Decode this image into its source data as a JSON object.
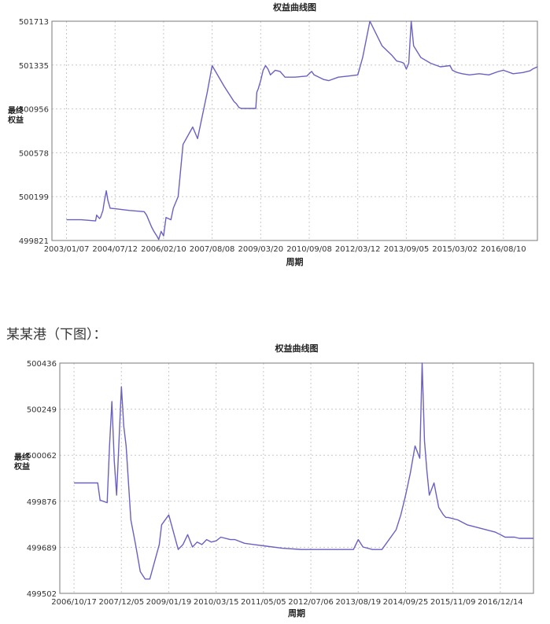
{
  "caption": "某某港（下图）：",
  "colors": {
    "line": "#6a60c4",
    "plot_bg": "#ffffff",
    "grid": "#c8c8c8",
    "frame": "#7a7a7a"
  },
  "chart_data": [
    {
      "type": "line",
      "title": "权益曲线图",
      "xlabel": "周期",
      "ylabel": "最终权益",
      "ylim": [
        499821,
        501713
      ],
      "yticks": [
        "501713",
        "501335",
        "500956",
        "500578",
        "500199",
        "499821"
      ],
      "xticks": [
        "2003/01/07",
        "2004/07/12",
        "2006/02/10",
        "2007/08/08",
        "2009/03/20",
        "2010/09/08",
        "2012/03/12",
        "2013/09/05",
        "2015/03/02",
        "2016/08/10"
      ],
      "grid": true,
      "series": [
        {
          "x": [
            0,
            0.3,
            0.6,
            0.62,
            0.68,
            0.7,
            0.75,
            0.78,
            0.82,
            0.85,
            0.9,
            1.0,
            1.3,
            1.6,
            1.65,
            1.75,
            1.8,
            1.86,
            1.9,
            1.95,
            2.0,
            2.05,
            2.15,
            2.2,
            2.3,
            2.4,
            2.6,
            2.7,
            2.9,
            3.0,
            3.25,
            3.45,
            3.5,
            3.55,
            3.6,
            3.7,
            3.8,
            3.85,
            3.9,
            3.92,
            3.95,
            4.0,
            4.05,
            4.1,
            4.15,
            4.2,
            4.3,
            4.4,
            4.5,
            4.7,
            4.95,
            5.0,
            5.05,
            5.1,
            5.2,
            5.3,
            5.4,
            5.6,
            5.8,
            6.0,
            6.1,
            6.25,
            6.5,
            6.7,
            6.8,
            6.9,
            6.95,
            7.0,
            7.05,
            7.1,
            7.15,
            7.3,
            7.5,
            7.7,
            7.9,
            7.95,
            8.0,
            8.05,
            8.15,
            8.3,
            8.5,
            8.7,
            8.9,
            9.0,
            9.2,
            9.4,
            9.55,
            9.6,
            9.7
          ],
          "values": [
            500000,
            500000,
            499990,
            500040,
            500010,
            500020,
            500080,
            500160,
            500250,
            500170,
            500100,
            500095,
            500080,
            500070,
            500040,
            499940,
            499900,
            499860,
            499830,
            499900,
            499860,
            500020,
            500000,
            500100,
            500200,
            500650,
            500800,
            500700,
            501100,
            501330,
            501150,
            501020,
            501000,
            500970,
            500960,
            500960,
            500960,
            500960,
            500960,
            501100,
            501130,
            501200,
            501290,
            501330,
            501300,
            501250,
            501290,
            501280,
            501230,
            501230,
            501240,
            501260,
            501280,
            501250,
            501230,
            501210,
            501200,
            501230,
            501240,
            501250,
            501400,
            501713,
            501500,
            501420,
            501370,
            501360,
            501350,
            501300,
            501350,
            501713,
            501500,
            501400,
            501350,
            501320,
            501330,
            501290,
            501280,
            501270,
            501260,
            501250,
            501260,
            501250,
            501280,
            501290,
            501260,
            501270,
            501285,
            501300,
            501320
          ]
        }
      ]
    },
    {
      "type": "line",
      "title": "权益曲线图",
      "xlabel": "周期",
      "ylabel": "最终权益",
      "ylim": [
        499502,
        500436
      ],
      "yticks": [
        "500436",
        "500249",
        "500062",
        "499876",
        "499689",
        "499502"
      ],
      "xticks": [
        "2006/10/17",
        "2007/12/05",
        "2009/01/19",
        "2010/03/15",
        "2011/05/05",
        "2012/07/06",
        "2013/08/19",
        "2014/09/25",
        "2015/11/09",
        "2016/12/14"
      ],
      "grid": true,
      "series": [
        {
          "x": [
            0,
            0.5,
            0.55,
            0.7,
            0.75,
            0.8,
            0.85,
            0.9,
            1.0,
            1.05,
            1.1,
            1.2,
            1.3,
            1.4,
            1.5,
            1.6,
            1.8,
            1.85,
            2.0,
            2.2,
            2.3,
            2.4,
            2.5,
            2.6,
            2.7,
            2.8,
            2.9,
            3.0,
            3.1,
            3.3,
            3.4,
            3.6,
            3.8,
            4.0,
            4.4,
            4.8,
            5.2,
            5.6,
            5.9,
            6.0,
            6.1,
            6.3,
            6.5,
            6.8,
            6.9,
            7.0,
            7.1,
            7.2,
            7.3,
            7.35,
            7.4,
            7.45,
            7.5,
            7.6,
            7.7,
            7.8,
            7.85,
            7.9,
            8.1,
            8.3,
            8.5,
            8.7,
            8.9,
            9.0,
            9.1,
            9.3,
            9.4,
            9.5,
            9.6,
            9.7
          ],
          "values": [
            499950,
            499950,
            499880,
            499870,
            500100,
            500280,
            500040,
            499900,
            500340,
            500180,
            500100,
            499800,
            499700,
            499590,
            499560,
            499560,
            499700,
            499780,
            499820,
            499680,
            499700,
            499740,
            499690,
            499710,
            499700,
            499720,
            499710,
            499715,
            499730,
            499720,
            499720,
            499705,
            499700,
            499695,
            499685,
            499680,
            499680,
            499680,
            499680,
            499720,
            499690,
            499680,
            499680,
            499760,
            499820,
            499900,
            499990,
            500100,
            500050,
            500436,
            500120,
            500000,
            499900,
            499950,
            499850,
            499820,
            499810,
            499810,
            499800,
            499780,
            499770,
            499760,
            499750,
            499740,
            499730,
            499730,
            499725,
            499725,
            499725,
            499725
          ]
        }
      ]
    }
  ]
}
